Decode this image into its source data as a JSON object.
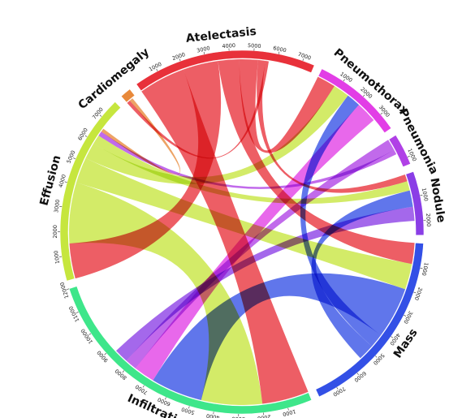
{
  "chart_data": {
    "type": "chord",
    "title": "",
    "groups": [
      {
        "name": "Atelectasis",
        "total": 7500,
        "color": "#e8313a",
        "ticks": [
          1000,
          2000,
          3000,
          4000,
          5000,
          6000,
          7000
        ]
      },
      {
        "name": "Pneumothorax",
        "total": 3700,
        "color": "#e23ee6",
        "ticks": [
          1000,
          2000,
          3000
        ]
      },
      {
        "name": "Pneumonia",
        "total": 1300,
        "color": "#b040e6",
        "ticks": [
          1000
        ]
      },
      {
        "name": "Nodule",
        "total": 2600,
        "color": "#8a3ee6",
        "ticks": [
          1000,
          2000
        ]
      },
      {
        "name": "Mass",
        "total": 7800,
        "color": "#3350e6",
        "ticks": [
          1000,
          2000,
          3000,
          4000,
          5000,
          6000,
          7000
        ]
      },
      {
        "name": "Infiltration",
        "total": 12000,
        "color": "#3ee68a",
        "ticks": [
          1000,
          2000,
          3000,
          4000,
          5000,
          6000,
          7000,
          8000,
          9000,
          10000,
          11000,
          12000
        ]
      },
      {
        "name": "Effusion",
        "total": 7800,
        "color": "#c6e63e",
        "ticks": [
          1000,
          2000,
          3000,
          4000,
          5000,
          6000,
          7000
        ]
      },
      {
        "name": "Cardiomegaly",
        "total": 450,
        "color": "#e8893a",
        "ticks": []
      }
    ],
    "links": [
      {
        "source": "Atelectasis",
        "target": "Infiltration",
        "value": 2000
      },
      {
        "source": "Atelectasis",
        "target": "Effusion",
        "value": 1500
      },
      {
        "source": "Atelectasis",
        "target": "Mass",
        "value": 900
      },
      {
        "source": "Atelectasis",
        "target": "Pneumothorax",
        "value": 800
      },
      {
        "source": "Atelectasis",
        "target": "Nodule",
        "value": 300
      },
      {
        "source": "Atelectasis",
        "target": "Cardiomegaly",
        "value": 150
      },
      {
        "source": "Effusion",
        "target": "Infiltration",
        "value": 2600
      },
      {
        "source": "Effusion",
        "target": "Mass",
        "value": 1100
      },
      {
        "source": "Effusion",
        "target": "Pneumothorax",
        "value": 700
      },
      {
        "source": "Effusion",
        "target": "Nodule",
        "value": 400
      },
      {
        "source": "Mass",
        "target": "Infiltration",
        "value": 2200
      },
      {
        "source": "Mass",
        "target": "Pneumothorax",
        "value": 600
      },
      {
        "source": "Mass",
        "target": "Nodule",
        "value": 700
      },
      {
        "source": "Pneumothorax",
        "target": "Infiltration",
        "value": 900
      },
      {
        "source": "Pneumonia",
        "target": "Infiltration",
        "value": 500
      },
      {
        "source": "Pneumonia",
        "target": "Effusion",
        "value": 200
      },
      {
        "source": "Nodule",
        "target": "Infiltration",
        "value": 600
      },
      {
        "source": "Cardiomegaly",
        "target": "Effusion",
        "value": 150
      }
    ]
  }
}
